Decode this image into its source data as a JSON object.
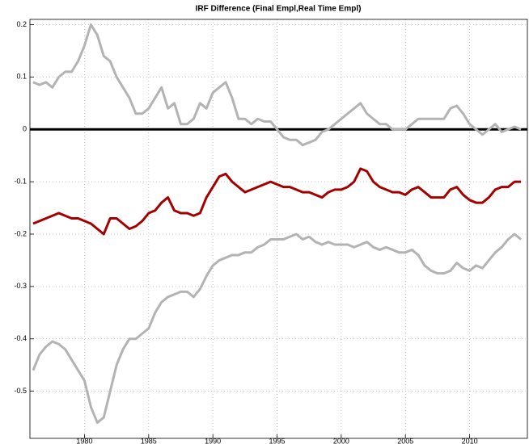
{
  "chart_data": {
    "type": "line",
    "title": "IRF Difference (Final Empl,Real Time Empl)",
    "x": [
      1976,
      1976.5,
      1977,
      1977.5,
      1978,
      1978.5,
      1979,
      1979.5,
      1980,
      1980.5,
      1981,
      1981.5,
      1982,
      1982.5,
      1983,
      1983.5,
      1984,
      1984.5,
      1985,
      1985.5,
      1986,
      1986.5,
      1987,
      1987.5,
      1988,
      1988.5,
      1989,
      1989.5,
      1990,
      1990.5,
      1991,
      1991.5,
      1992,
      1992.5,
      1993,
      1993.5,
      1994,
      1994.5,
      1995,
      1995.5,
      1996,
      1996.5,
      1997,
      1997.5,
      1998,
      1998.5,
      1999,
      1999.5,
      2000,
      2000.5,
      2001,
      2001.5,
      2002,
      2002.5,
      2003,
      2003.5,
      2004,
      2004.5,
      2005,
      2005.5,
      2006,
      2006.5,
      2007,
      2007.5,
      2008,
      2008.5,
      2009,
      2009.5,
      2010,
      2010.5,
      2011,
      2011.5,
      2012,
      2012.5,
      2013,
      2013.5,
      2014
    ],
    "series": [
      {
        "color": "#b3b3b3",
        "values": [
          0.09,
          0.085,
          0.09,
          0.08,
          0.1,
          0.11,
          0.11,
          0.13,
          0.16,
          0.2,
          0.18,
          0.14,
          0.13,
          0.1,
          0.08,
          0.06,
          0.03,
          0.03,
          0.04,
          0.06,
          0.08,
          0.04,
          0.05,
          0.01,
          0.01,
          0.02,
          0.05,
          0.04,
          0.07,
          0.08,
          0.09,
          0.06,
          0.02,
          0.02,
          0.01,
          0.02,
          0.015,
          0.015,
          0.0,
          -0.015,
          -0.02,
          -0.02,
          -0.03,
          -0.025,
          -0.02,
          -0.005,
          0.0,
          0.01,
          0.02,
          0.03,
          0.04,
          0.05,
          0.03,
          0.02,
          0.01,
          0.01,
          0.0,
          0.0,
          0.0,
          0.01,
          0.02,
          0.02,
          0.02,
          0.02,
          0.02,
          0.04,
          0.045,
          0.03,
          0.01,
          0.0,
          -0.01,
          0.0,
          0.01,
          -0.005,
          0.0,
          0.005,
          0.0
        ]
      },
      {
        "color": "#a50000",
        "values": [
          -0.18,
          -0.175,
          -0.17,
          -0.165,
          -0.16,
          -0.165,
          -0.17,
          -0.17,
          -0.175,
          -0.18,
          -0.19,
          -0.2,
          -0.17,
          -0.17,
          -0.18,
          -0.19,
          -0.185,
          -0.175,
          -0.16,
          -0.155,
          -0.14,
          -0.13,
          -0.155,
          -0.16,
          -0.16,
          -0.165,
          -0.16,
          -0.13,
          -0.11,
          -0.09,
          -0.085,
          -0.1,
          -0.11,
          -0.12,
          -0.115,
          -0.11,
          -0.105,
          -0.1,
          -0.105,
          -0.11,
          -0.11,
          -0.115,
          -0.12,
          -0.12,
          -0.125,
          -0.13,
          -0.12,
          -0.115,
          -0.115,
          -0.11,
          -0.1,
          -0.075,
          -0.08,
          -0.1,
          -0.11,
          -0.115,
          -0.12,
          -0.12,
          -0.125,
          -0.115,
          -0.11,
          -0.12,
          -0.13,
          -0.13,
          -0.13,
          -0.115,
          -0.11,
          -0.125,
          -0.135,
          -0.14,
          -0.14,
          -0.13,
          -0.115,
          -0.11,
          -0.11,
          -0.1,
          -0.1
        ]
      },
      {
        "color": "#b3b3b3",
        "values": [
          -0.46,
          -0.43,
          -0.415,
          -0.405,
          -0.41,
          -0.42,
          -0.44,
          -0.46,
          -0.48,
          -0.53,
          -0.56,
          -0.55,
          -0.5,
          -0.45,
          -0.42,
          -0.4,
          -0.4,
          -0.39,
          -0.38,
          -0.35,
          -0.33,
          -0.32,
          -0.315,
          -0.31,
          -0.31,
          -0.32,
          -0.305,
          -0.28,
          -0.26,
          -0.25,
          -0.245,
          -0.24,
          -0.24,
          -0.235,
          -0.235,
          -0.225,
          -0.22,
          -0.21,
          -0.21,
          -0.21,
          -0.205,
          -0.2,
          -0.21,
          -0.205,
          -0.215,
          -0.22,
          -0.215,
          -0.22,
          -0.22,
          -0.22,
          -0.225,
          -0.22,
          -0.215,
          -0.225,
          -0.23,
          -0.225,
          -0.23,
          -0.235,
          -0.235,
          -0.23,
          -0.24,
          -0.26,
          -0.27,
          -0.275,
          -0.275,
          -0.27,
          -0.255,
          -0.265,
          -0.27,
          -0.26,
          -0.265,
          -0.25,
          -0.235,
          -0.225,
          -0.21,
          -0.2,
          -0.21
        ]
      }
    ],
    "hline": 0,
    "xlim": [
      1975.75,
      2014.5
    ],
    "ylim": [
      -0.59,
      0.21
    ],
    "xticks": [
      1980,
      1985,
      1990,
      1995,
      2000,
      2005,
      2010
    ],
    "yticks": [
      0.2,
      0.1,
      0,
      -0.1,
      -0.2,
      -0.3,
      -0.4,
      -0.5
    ],
    "grid": true
  }
}
